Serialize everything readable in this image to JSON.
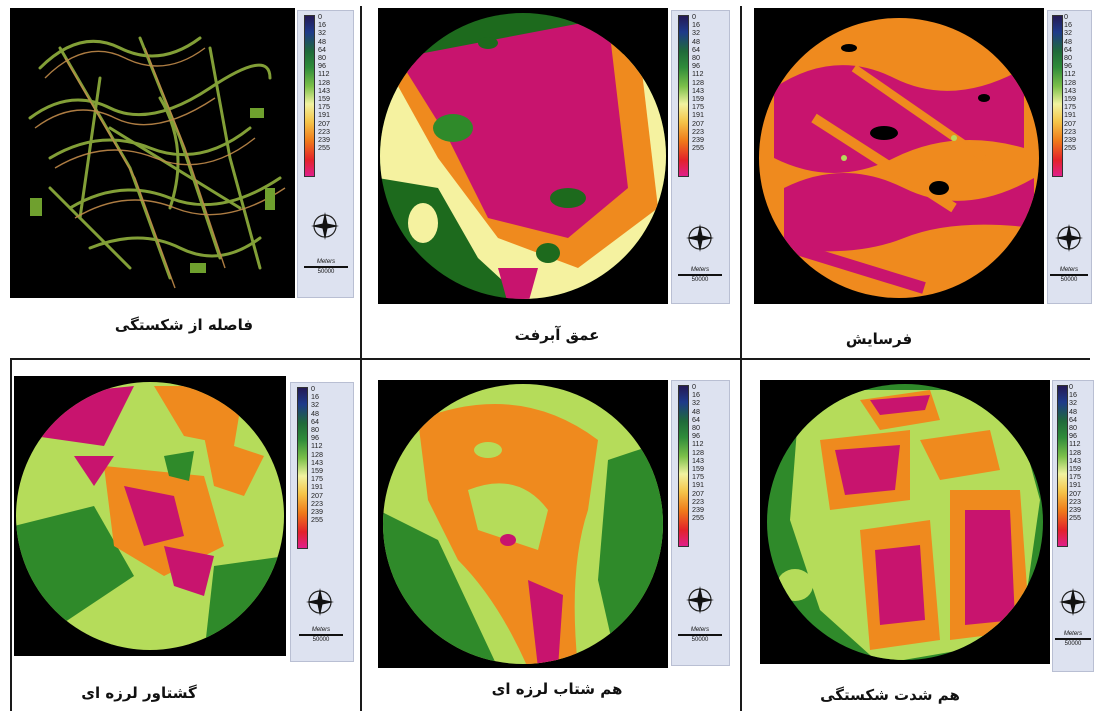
{
  "legend": {
    "ticks": [
      "0",
      "16",
      "32",
      "48",
      "64",
      "80",
      "96",
      "112",
      "128",
      "143",
      "159",
      "175",
      "191",
      "207",
      "223",
      "239",
      "255"
    ],
    "scale_unit": "Meters",
    "scale_value": "50000"
  },
  "panels": [
    {
      "id": "fault-distance",
      "caption": "فاصله از شکستگی"
    },
    {
      "id": "alluvium-depth",
      "caption": "عمق آبرفت"
    },
    {
      "id": "erosion",
      "caption": "فرسایش"
    },
    {
      "id": "seismic-moment",
      "caption": "گشتاور لرزه ای"
    },
    {
      "id": "iso-acceleration",
      "caption": "هم شتاب لرزه ای"
    },
    {
      "id": "fracture-intensity",
      "caption": "هم شدت شکستگی"
    }
  ],
  "colors": {
    "magenta": "#c8146e",
    "orange": "#ef8a1e",
    "yellow": "#f5f2a0",
    "lightgreen": "#b5dc5a",
    "green": "#2f8a2a",
    "darkgreen": "#1d6a1d",
    "background": "#000000"
  }
}
